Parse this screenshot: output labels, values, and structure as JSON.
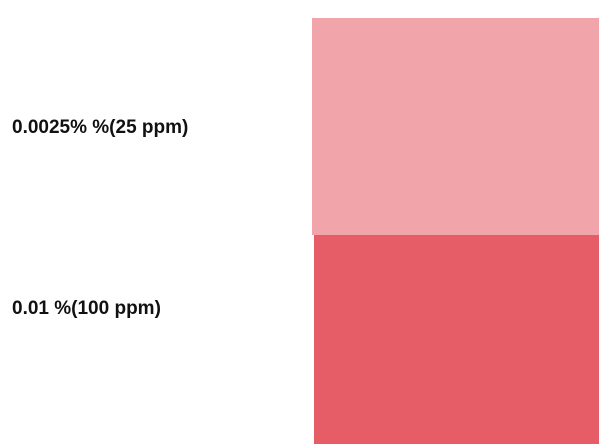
{
  "rows": [
    {
      "label": "0.0025% %(25 ppm)",
      "color": "#f1a5aa"
    },
    {
      "label": "0.01 %(100 ppm)",
      "color": "#e75d67"
    }
  ]
}
